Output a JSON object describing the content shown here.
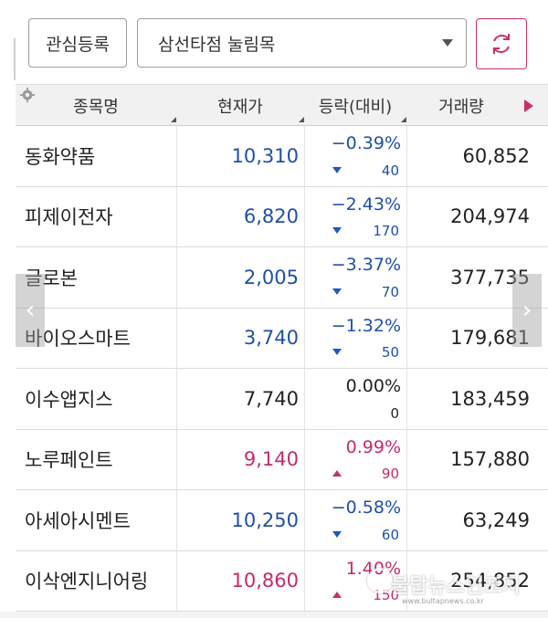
{
  "toolbar": {
    "watchlist_button": "관심등록",
    "group_select_value": "삼선타점 눌림목",
    "refresh_icon": "refresh-icon"
  },
  "columns": {
    "name": "종목명",
    "price": "현재가",
    "change": "등락(대비)",
    "volume": "거래량"
  },
  "colors": {
    "down": "#1f4fa8",
    "up": "#c42a6f",
    "accent": "#c7306c"
  },
  "rows": [
    {
      "name": "동화약품",
      "price": "10,310",
      "pct": "−0.39%",
      "amt": "40",
      "volume": "60,852",
      "dir": "down"
    },
    {
      "name": "피제이전자",
      "price": "6,820",
      "pct": "−2.43%",
      "amt": "170",
      "volume": "204,974",
      "dir": "down"
    },
    {
      "name": "글로본",
      "price": "2,005",
      "pct": "−3.37%",
      "amt": "70",
      "volume": "377,735",
      "dir": "down"
    },
    {
      "name": "바이오스마트",
      "price": "3,740",
      "pct": "−1.32%",
      "amt": "50",
      "volume": "179,681",
      "dir": "down"
    },
    {
      "name": "이수앱지스",
      "price": "7,740",
      "pct": "0.00%",
      "amt": "0",
      "volume": "183,459",
      "dir": "flat"
    },
    {
      "name": "노루페인트",
      "price": "9,140",
      "pct": "0.99%",
      "amt": "90",
      "volume": "157,880",
      "dir": "up"
    },
    {
      "name": "아세아시멘트",
      "price": "10,250",
      "pct": "−0.58%",
      "amt": "60",
      "volume": "63,249",
      "dir": "down"
    },
    {
      "name": "이삭엔지니어링",
      "price": "10,860",
      "pct": "1.40%",
      "amt": "150",
      "volume": "254,852",
      "dir": "up"
    }
  ],
  "watermark": {
    "text": "불탑뉴스인포지",
    "sub": "www.bultapnews.co.kr"
  }
}
